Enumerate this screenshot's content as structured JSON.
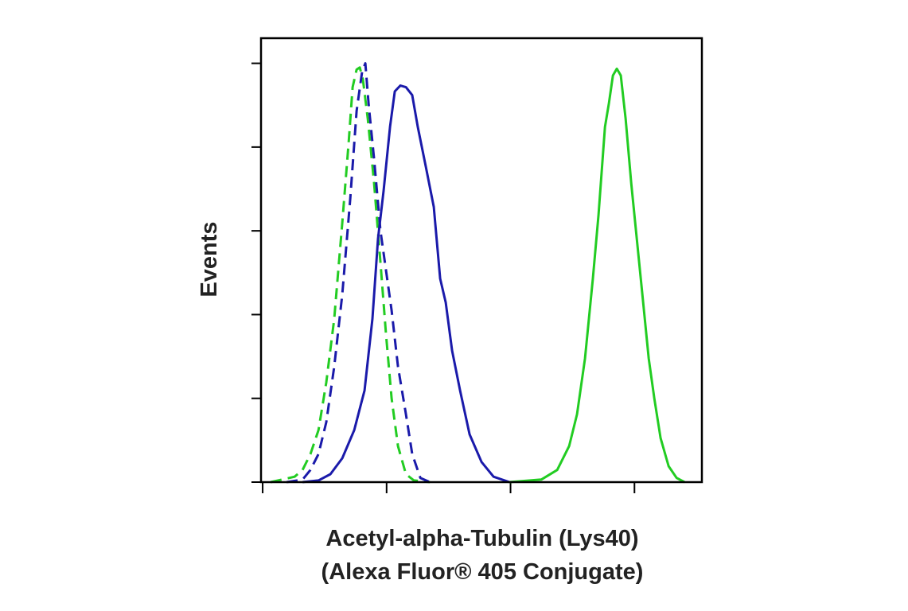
{
  "chart_data": {
    "type": "line",
    "ylabel": "Events",
    "xlabel": [
      "Acetyl-alpha-Tubulin (Lys40)",
      "(Alexa Fluor® 405 Conjugate)"
    ],
    "xscale": "log",
    "xlim": [
      97,
      350000
    ],
    "xticks": [
      100,
      1000,
      10000,
      100000
    ],
    "ylim": [
      0,
      106
    ],
    "yticks": [
      0,
      20,
      40,
      60,
      80,
      100
    ],
    "grid": false,
    "series": [
      {
        "color": "#22cc22",
        "dashed": true,
        "x": [
          116,
          181,
          210,
          243,
          282,
          326,
          378,
          439,
          494,
          532,
          573,
          608,
          644,
          705,
          793,
          893,
          990,
          1097,
          1236,
          1432,
          1660,
          2234
        ],
        "values": [
          0,
          1.3,
          2.9,
          6.7,
          12.4,
          23.8,
          39.0,
          61.9,
          81.0,
          94.3,
          98.5,
          99.0,
          96.2,
          86.7,
          71.4,
          52.4,
          35.2,
          20.0,
          8.6,
          1.9,
          0.4,
          0
        ]
      },
      {
        "color": "#1a1aaa",
        "dashed": true,
        "x": [
          156,
          210,
          243,
          282,
          326,
          378,
          439,
          509,
          573,
          635,
          674,
          715,
          793,
          893,
          990,
          1097,
          1236,
          1432,
          1611,
          1871,
          2234
        ],
        "values": [
          0,
          0.6,
          2.9,
          6.7,
          14.3,
          27.6,
          44.8,
          67.6,
          88.6,
          98.1,
          100,
          90.5,
          77.1,
          60.0,
          50.5,
          41.0,
          27.6,
          16.2,
          6.7,
          1.0,
          0
        ]
      },
      {
        "color": "#1a1aaa",
        "dashed": false,
        "x": [
          210,
          282,
          352,
          439,
          548,
          664,
          769,
          853,
          946,
          1066,
          1164,
          1291,
          1432,
          1611,
          1786,
          2075,
          2404,
          2704,
          3000,
          3378,
          3917,
          4677,
          5834,
          7295,
          9795
        ],
        "values": [
          0,
          0.4,
          1.9,
          5.7,
          12.4,
          21.9,
          39.0,
          58.1,
          69.5,
          84.8,
          93.3,
          94.7,
          94.3,
          92.4,
          84.8,
          75.2,
          65.7,
          48.6,
          42.9,
          31.4,
          21.9,
          11.4,
          4.8,
          1.3,
          0
        ]
      },
      {
        "color": "#22cc22",
        "dashed": false,
        "x": [
          9795,
          17700,
          23800,
          29700,
          34400,
          39900,
          46200,
          51300,
          57800,
          62200,
          67000,
          72100,
          77600,
          84900,
          94200,
          104400,
          117500,
          130300,
          144500,
          162600,
          188600,
          218800,
          253600
        ],
        "values": [
          0,
          0.6,
          2.9,
          8.6,
          16.2,
          29.5,
          48.6,
          63.8,
          84.8,
          90.5,
          97.1,
          98.7,
          97.1,
          86.7,
          71.4,
          58.1,
          42.9,
          29.5,
          20.0,
          10.5,
          3.8,
          1.0,
          0
        ]
      }
    ]
  }
}
